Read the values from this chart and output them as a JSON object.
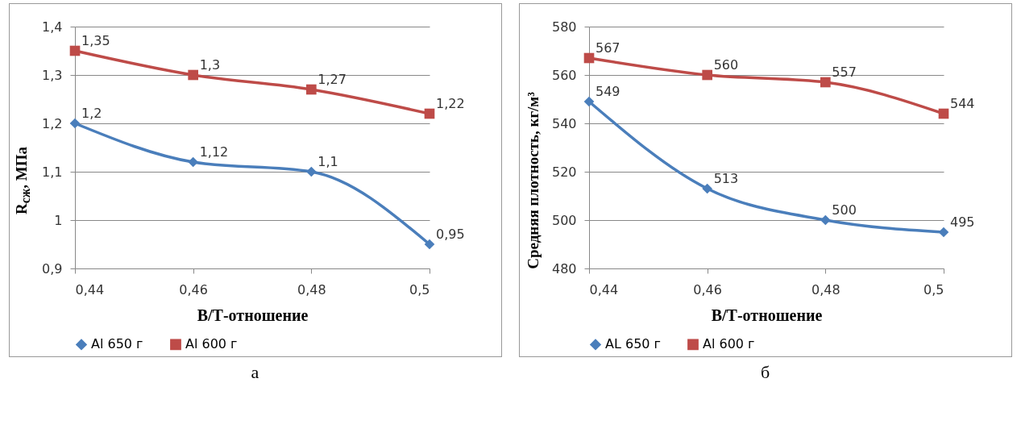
{
  "chart_data": [
    {
      "type": "line",
      "xlabel": "В/Т-отношение",
      "ylabel": "R$_{сж}$, МПа",
      "x": [
        0.44,
        0.46,
        0.48,
        0.5
      ],
      "xlim": [
        0.44,
        0.5
      ],
      "xticks": [
        {
          "value": 0.44,
          "label": "0,44"
        },
        {
          "value": 0.46,
          "label": "0,46"
        },
        {
          "value": 0.48,
          "label": "0,48"
        },
        {
          "value": 0.5,
          "label": "0,5"
        }
      ],
      "ylim": [
        0.9,
        1.4
      ],
      "yticks": [
        {
          "value": 0.9,
          "label": "0,9"
        },
        {
          "value": 1,
          "label": "1"
        },
        {
          "value": 1.1,
          "label": "1,1"
        },
        {
          "value": 1.2,
          "label": "1,2"
        },
        {
          "value": 1.3,
          "label": "1,3"
        },
        {
          "value": 1.4,
          "label": "1,4"
        }
      ],
      "series": [
        {
          "name": "Al 650 г",
          "color": "#4a7ebb",
          "marker": "diamond",
          "values": [
            1.2,
            1.12,
            1.1,
            0.95
          ],
          "value_labels": [
            "1,2",
            "1,12",
            "1,1",
            "0,95"
          ]
        },
        {
          "name": "Al 600 г",
          "color": "#be4b48",
          "marker": "square",
          "values": [
            1.35,
            1.3,
            1.27,
            1.22
          ],
          "value_labels": [
            "1,35",
            "1,3",
            "1,27",
            "1,22"
          ]
        }
      ],
      "grid": "y",
      "legend": "bottom",
      "annotations": [
        "а"
      ]
    },
    {
      "type": "line",
      "xlabel": "В/Т-отношение",
      "ylabel": "Средняя плотность, кг/м³",
      "x": [
        0.44,
        0.46,
        0.48,
        0.5
      ],
      "xlim": [
        0.44,
        0.5
      ],
      "xticks": [
        {
          "value": 0.44,
          "label": "0,44"
        },
        {
          "value": 0.46,
          "label": "0,46"
        },
        {
          "value": 0.48,
          "label": "0,48"
        },
        {
          "value": 0.5,
          "label": "0,5"
        }
      ],
      "ylim": [
        480,
        580
      ],
      "yticks": [
        480,
        500,
        520,
        540,
        560,
        580
      ],
      "series": [
        {
          "name": "AL 650 г",
          "color": "#4a7ebb",
          "marker": "diamond",
          "values": [
            549,
            513,
            500,
            495
          ]
        },
        {
          "name": "Al 600 г",
          "color": "#be4b48",
          "marker": "square",
          "values": [
            567,
            560,
            557,
            544
          ]
        }
      ],
      "data_labels": true,
      "grid": "y",
      "legend": "bottom",
      "annotations": [
        "б"
      ]
    }
  ]
}
